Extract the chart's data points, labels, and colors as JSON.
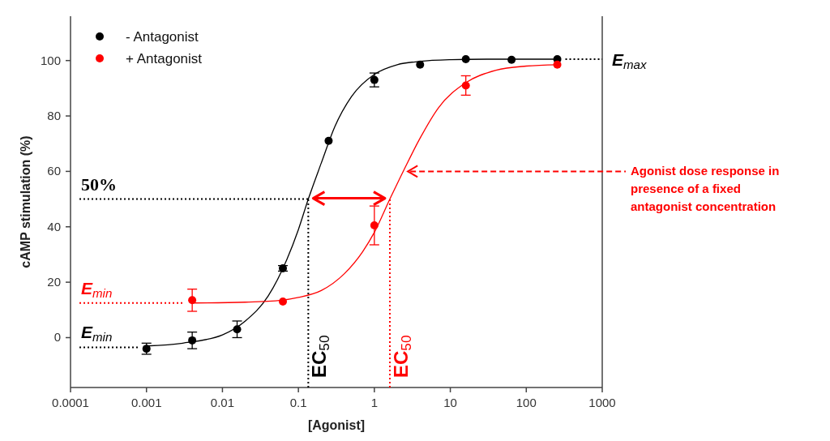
{
  "chart_data": {
    "type": "scatter",
    "xlabel": "[Agonist]",
    "ylabel": "cAMP stimulation (%)",
    "log": "x",
    "xlim": [
      0.0001,
      1000
    ],
    "ylim": [
      -18,
      116
    ],
    "xticks": [
      0.0001,
      0.001,
      0.01,
      0.1,
      1,
      10,
      100,
      1000
    ],
    "yticks": [
      0,
      20,
      40,
      60,
      80,
      100
    ],
    "grid": false,
    "legend": "top left",
    "marker": "circle",
    "series": [
      {
        "name": "-  Antagonist",
        "color": "#000000",
        "x": [
          0.001,
          0.004,
          0.0156,
          0.0625,
          0.25,
          1,
          4,
          16,
          64,
          256
        ],
        "values": [
          -4,
          -1,
          3,
          25,
          71,
          93,
          98.5,
          100.5,
          100.3,
          100.5
        ],
        "errors": [
          2,
          3,
          3,
          1,
          null,
          2.5,
          null,
          null,
          null,
          null
        ]
      },
      {
        "name": "+ Antagonist",
        "color": "#ff0000",
        "x": [
          0.004,
          0.0625,
          1,
          16,
          256
        ],
        "values": [
          13.5,
          13,
          40.5,
          91,
          98.5
        ],
        "errors": [
          4,
          null,
          7,
          3.5,
          null
        ]
      },
      {
        "type": "line",
        "color": "#000000",
        "line_style": "solid",
        "marker": "none",
        "x": [
          0.001,
          0.003,
          0.01,
          0.02,
          0.04,
          0.07,
          0.1,
          0.135,
          0.2,
          0.3,
          0.5,
          1,
          2,
          4,
          10,
          30,
          256
        ],
        "values": [
          -3,
          -2,
          1,
          6,
          15,
          28,
          39,
          50,
          63,
          76,
          87,
          95,
          98.5,
          99.7,
          100.3,
          100.5,
          100.5
        ]
      },
      {
        "type": "line",
        "color": "#ff0000",
        "line_style": "solid",
        "marker": "none",
        "x": [
          0.004,
          0.02,
          0.06,
          0.1,
          0.2,
          0.4,
          0.7,
          1,
          1.6,
          2.5,
          4,
          7,
          16,
          40,
          100,
          256
        ],
        "values": [
          12.5,
          12.8,
          13.5,
          14.5,
          17,
          23,
          31,
          38,
          50,
          61,
          72,
          83,
          92,
          96.5,
          98,
          98.5
        ]
      }
    ],
    "ref_lines": [
      {
        "axis": "y",
        "value": 50,
        "label": "50%",
        "color": "#000000",
        "line_style": "dotted"
      },
      {
        "axis": "y",
        "value": -3.5,
        "label": "E$_{min}$",
        "color": "#000000",
        "line_style": "dotted"
      },
      {
        "axis": "y",
        "value": 12.5,
        "label": "E$_{min}$",
        "color": "#ff0000",
        "line_style": "dotted"
      },
      {
        "axis": "y",
        "value": 100.5,
        "label": "E$_{max}$",
        "color": "#000000",
        "line_style": "dotted"
      },
      {
        "axis": "x",
        "value": 0.135,
        "label": "EC$_{50}$",
        "color": "#000000",
        "line_style": "dotted"
      },
      {
        "axis": "x",
        "value": 1.6,
        "label": "EC$_{50}$",
        "color": "#ff0000",
        "line_style": "dotted"
      }
    ],
    "annotations": [
      {
        "text": "Agonist dose response in presence of a fixed antagonist concentration",
        "x": 2.5,
        "y": 60
      }
    ]
  }
}
